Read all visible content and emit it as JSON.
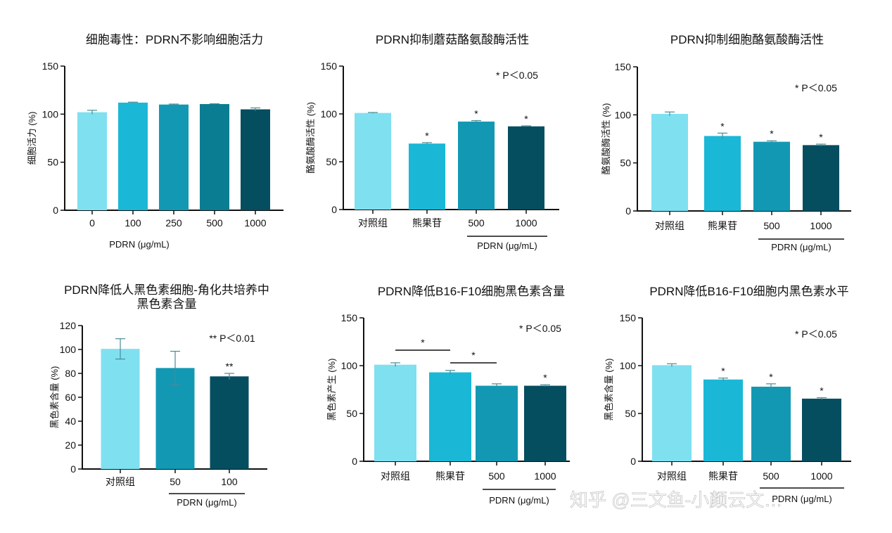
{
  "colors": {
    "c0": "#7fe0f0",
    "c1": "#1ab8d6",
    "c2": "#1398b4",
    "c3": "#0b7d92",
    "c4": "#054e60"
  },
  "watermark": "知乎 @三文鱼-小颜云文…",
  "chart_data": [
    {
      "type": "bar",
      "title": [
        "细胞毒性：PDRN不影响细胞活力"
      ],
      "ylabel": "细胞活力 (%)",
      "xlabel": "PDRN (μg/mL)",
      "categories": [
        "0",
        "100",
        "250",
        "500",
        "1000"
      ],
      "values": [
        102,
        112,
        110,
        110.5,
        105
      ],
      "errors": [
        2,
        0.5,
        0.5,
        0.3,
        1.5
      ],
      "colors": [
        "c0",
        "c1",
        "c2",
        "c3",
        "c4"
      ],
      "stars": [
        "",
        "",
        "",
        "",
        ""
      ],
      "ylim": [
        0,
        150
      ],
      "yticks": [
        0,
        50,
        100,
        150
      ],
      "annotation": "",
      "group_label": "",
      "grid": false
    },
    {
      "type": "bar",
      "title": [
        "PDRN抑制蘑菇酪氨酸酶活性"
      ],
      "ylabel": "酪氨酸酶活性 (%)",
      "xlabel": "PDRN (μg/mL)",
      "categories": [
        "对照组",
        "熊果苷",
        "500",
        "1000"
      ],
      "values": [
        101,
        69,
        92,
        87
      ],
      "errors": [
        0.5,
        1,
        1,
        0.5
      ],
      "colors": [
        "c0",
        "c1",
        "c2",
        "c4"
      ],
      "stars": [
        "",
        "*",
        "*",
        "*"
      ],
      "ylim": [
        0,
        150
      ],
      "yticks": [
        0,
        50,
        100,
        150
      ],
      "annotation": "* P＜0.05",
      "group_label": "PDRN (μg/mL)",
      "grid": false
    },
    {
      "type": "bar",
      "title": [
        "PDRN抑制细胞酪氨酸酶活性"
      ],
      "ylabel": "酪氨酸酶活性 (%)",
      "xlabel": "PDRN (μg/mL)",
      "categories": [
        "对照组",
        "熊果苷",
        "500",
        "1000"
      ],
      "values": [
        101,
        78,
        72,
        68.5
      ],
      "errors": [
        2,
        3,
        1,
        1
      ],
      "colors": [
        "c0",
        "c1",
        "c2",
        "c4"
      ],
      "stars": [
        "",
        "*",
        "*",
        "*"
      ],
      "ylim": [
        0,
        150
      ],
      "yticks": [
        0,
        50,
        100,
        150
      ],
      "annotation": "* P＜0.05",
      "group_label": "PDRN (μg/mL)",
      "grid": false
    },
    {
      "type": "bar",
      "title": [
        "PDRN降低人黑色素细胞-角化共培养中",
        "黑色素含量"
      ],
      "ylabel": "黑色素含量 (%)",
      "xlabel": "PDRN (μg/mL)",
      "categories": [
        "对照组",
        "50",
        "100"
      ],
      "values": [
        100.5,
        84.5,
        77.5
      ],
      "errors": [
        8.5,
        14,
        2.5
      ],
      "colors": [
        "c0",
        "c2",
        "c4"
      ],
      "stars": [
        "",
        "",
        "**"
      ],
      "ylim": [
        0,
        120
      ],
      "yticks": [
        0,
        20,
        40,
        60,
        80,
        100,
        120
      ],
      "annotation": "** P＜0.01",
      "group_label": "PDRN (μg/mL)",
      "grid": false
    },
    {
      "type": "bar",
      "title": [
        "PDRN降低B16-F10细胞黑色素含量"
      ],
      "ylabel": "黑色素产生 (%)",
      "xlabel": "PDRN (μg/mL)",
      "categories": [
        "对照组",
        "熊果苷",
        "500",
        "1000"
      ],
      "values": [
        101,
        93,
        79,
        79
      ],
      "errors": [
        2,
        2,
        2,
        1
      ],
      "colors": [
        "c0",
        "c1",
        "c2",
        "c4"
      ],
      "stars": [
        "",
        "",
        "",
        "*"
      ],
      "brackets": [
        {
          "from": 0,
          "to": 1,
          "label": "*"
        },
        {
          "from": 1,
          "to": 2,
          "label": "*"
        }
      ],
      "ylim": [
        0,
        150
      ],
      "yticks": [
        0,
        50,
        100,
        150
      ],
      "annotation": "* P＜0.05",
      "group_label": "PDRN (μg/mL)",
      "grid": false
    },
    {
      "type": "bar",
      "title": [
        "PDRN降低B16-F10细胞内黑色素水平"
      ],
      "ylabel": "黑色素含量 (%)",
      "xlabel": "PDRN (μg/mL)",
      "categories": [
        "对照组",
        "熊果苷",
        "500",
        "1000"
      ],
      "values": [
        100.5,
        85.5,
        78,
        65.5
      ],
      "errors": [
        1.5,
        1.5,
        3,
        1
      ],
      "colors": [
        "c0",
        "c1",
        "c2",
        "c4"
      ],
      "stars": [
        "",
        "*",
        "*",
        "*"
      ],
      "ylim": [
        0,
        150
      ],
      "yticks": [
        0,
        50,
        100,
        150
      ],
      "annotation": "* P＜0.05",
      "group_label": "PDRN (μg/mL)",
      "grid": false
    }
  ]
}
